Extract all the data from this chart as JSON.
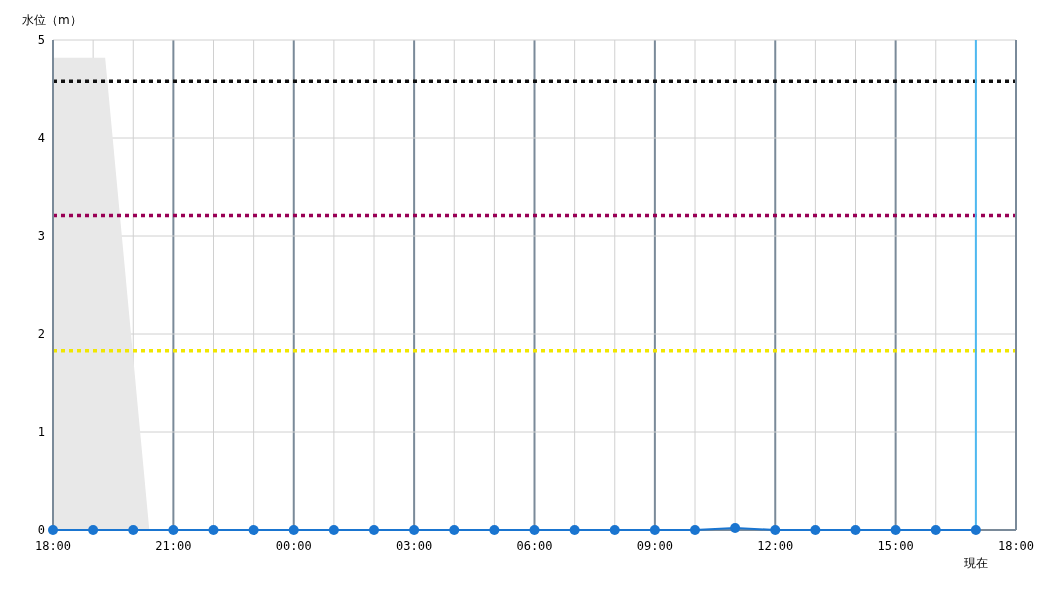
{
  "chart_data": {
    "type": "line",
    "ylabel": "水位（m）",
    "x": [
      "2000-01-01T18:00",
      "2000-01-01T19:00",
      "2000-01-01T20:00",
      "2000-01-01T21:00",
      "2000-01-01T22:00",
      "2000-01-01T23:00",
      "2000-01-02T00:00",
      "2000-01-02T01:00",
      "2000-01-02T02:00",
      "2000-01-02T03:00",
      "2000-01-02T04:00",
      "2000-01-02T05:00",
      "2000-01-02T06:00",
      "2000-01-02T07:00",
      "2000-01-02T08:00",
      "2000-01-02T09:00",
      "2000-01-02T10:00",
      "2000-01-02T11:00",
      "2000-01-02T12:00",
      "2000-01-02T13:00",
      "2000-01-02T14:00",
      "2000-01-02T15:00",
      "2000-01-02T16:00",
      "2000-01-02T17:00"
    ],
    "series": [
      {
        "type": "area",
        "color": "#e8e8e8",
        "x": [
          "2000-01-01T18:00",
          "2000-01-01T19:18",
          "2000-01-01T20:24"
        ],
        "values": [
          4.82,
          4.82,
          0
        ],
        "marker": "none"
      },
      {
        "color": "#1a75d0",
        "marker": "circle",
        "values": [
          0,
          0,
          0,
          0,
          0,
          0,
          0,
          0,
          0,
          0,
          0,
          0,
          0,
          0,
          0,
          0,
          0,
          0.02,
          0,
          0,
          0,
          0,
          0,
          0
        ]
      }
    ],
    "xlim": [
      "2000-01-01T18:00",
      "2000-01-02T18:00"
    ],
    "xticks": [
      {
        "value": "2000-01-01T18:00",
        "label": "18:00"
      },
      {
        "value": "2000-01-01T19:00",
        "label": null
      },
      {
        "value": "2000-01-01T20:00",
        "label": null
      },
      {
        "value": "2000-01-01T21:00",
        "label": "21:00"
      },
      {
        "value": "2000-01-01T22:00",
        "label": null
      },
      {
        "value": "2000-01-01T23:00",
        "label": null
      },
      {
        "value": "2000-01-02T00:00",
        "label": "00:00"
      },
      {
        "value": "2000-01-02T01:00",
        "label": null
      },
      {
        "value": "2000-01-02T02:00",
        "label": null
      },
      {
        "value": "2000-01-02T03:00",
        "label": "03:00"
      },
      {
        "value": "2000-01-02T04:00",
        "label": null
      },
      {
        "value": "2000-01-02T05:00",
        "label": null
      },
      {
        "value": "2000-01-02T06:00",
        "label": "06:00"
      },
      {
        "value": "2000-01-02T07:00",
        "label": null
      },
      {
        "value": "2000-01-02T08:00",
        "label": null
      },
      {
        "value": "2000-01-02T09:00",
        "label": "09:00"
      },
      {
        "value": "2000-01-02T10:00",
        "label": null
      },
      {
        "value": "2000-01-02T11:00",
        "label": null
      },
      {
        "value": "2000-01-02T12:00",
        "label": "12:00"
      },
      {
        "value": "2000-01-02T13:00",
        "label": null
      },
      {
        "value": "2000-01-02T14:00",
        "label": null
      },
      {
        "value": "2000-01-02T15:00",
        "label": "15:00"
      },
      {
        "value": "2000-01-02T16:00",
        "label": null
      },
      {
        "value": "2000-01-02T17:00",
        "label": null
      },
      {
        "value": "2000-01-02T18:00",
        "label": "18:00"
      }
    ],
    "ylim": [
      0,
      5
    ],
    "yticks": [
      0,
      1,
      2,
      3,
      4,
      5
    ],
    "grid": true,
    "ref_lines": [
      {
        "axis": "y",
        "value": 4.58,
        "color": "#111111",
        "line_style": "dotted"
      },
      {
        "axis": "y",
        "value": 3.21,
        "color": "#990055",
        "line_style": "dotted"
      },
      {
        "axis": "y",
        "value": 1.83,
        "color": "#f0e600",
        "line_style": "dotted"
      },
      {
        "axis": "x",
        "value": "2000-01-02T17:00",
        "label": "現在",
        "color": "#4db8f0",
        "line_style": "solid"
      }
    ]
  }
}
